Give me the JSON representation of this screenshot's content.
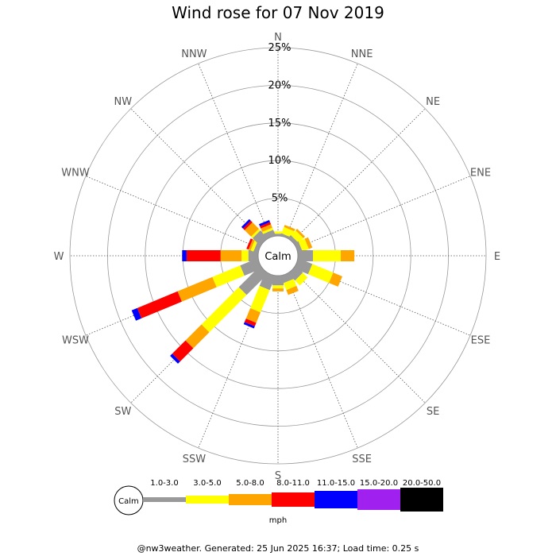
{
  "title": "Wind rose for 07 Nov 2019",
  "footer": "@nw3weather. Generated: 25 Jun 2025 16:37; Load time: 0.25 s",
  "chart_data": {
    "type": "windrose",
    "title": "Wind rose for 07 Nov 2019",
    "calm_label": "Calm",
    "unit": "mph",
    "directions": [
      "N",
      "NNE",
      "NE",
      "ENE",
      "E",
      "ESE",
      "SE",
      "SSE",
      "S",
      "SSW",
      "SW",
      "WSW",
      "W",
      "WNW",
      "NW",
      "NNW"
    ],
    "radial_ticks": [
      "5%",
      "10%",
      "15%",
      "20%",
      "25%"
    ],
    "radial_values": [
      5,
      10,
      15,
      20,
      25
    ],
    "rmax": 25,
    "bins": [
      {
        "name": "1.0-3.0",
        "color": "#999999"
      },
      {
        "name": "3.0-5.0",
        "color": "#ffff00"
      },
      {
        "name": "5.0-8.0",
        "color": "#ffa500"
      },
      {
        "name": "8.0-11.0",
        "color": "#ff0000"
      },
      {
        "name": "11.0-15.0",
        "color": "#0000ff"
      },
      {
        "name": "15.0-20.0",
        "color": "#a020f0"
      },
      {
        "name": "20.0-50.0",
        "color": "#000000"
      }
    ],
    "series": [
      {
        "direction": "N",
        "values": [
          0.3,
          0.3,
          0,
          0,
          0,
          0,
          0
        ]
      },
      {
        "direction": "NNE",
        "values": [
          0.3,
          0.9,
          0.3,
          0,
          0,
          0,
          0
        ]
      },
      {
        "direction": "NE",
        "values": [
          0.5,
          0.9,
          0.3,
          0,
          0,
          0,
          0
        ]
      },
      {
        "direction": "ENE",
        "values": [
          0.6,
          0.9,
          0.5,
          0,
          0,
          0,
          0
        ]
      },
      {
        "direction": "E",
        "values": [
          2.0,
          3.7,
          1.8,
          0,
          0,
          0,
          0
        ]
      },
      {
        "direction": "ESE",
        "values": [
          2.0,
          3.0,
          1.3,
          0,
          0,
          0,
          0
        ]
      },
      {
        "direction": "SE",
        "values": [
          1.3,
          0.9,
          0,
          0,
          0,
          0,
          0
        ]
      },
      {
        "direction": "SSE",
        "values": [
          1.0,
          1.0,
          0.7,
          0,
          0,
          0,
          0
        ]
      },
      {
        "direction": "S",
        "values": [
          1.3,
          0.4,
          0.4,
          0,
          0,
          0,
          0
        ]
      },
      {
        "direction": "SSW",
        "values": [
          2.0,
          3.2,
          1.5,
          0.5,
          0.3,
          0,
          0
        ]
      },
      {
        "direction": "SW",
        "values": [
          4.0,
          7.0,
          3.0,
          2.5,
          0.4,
          0,
          0
        ]
      },
      {
        "direction": "WSW",
        "values": [
          2.5,
          4.0,
          5.0,
          5.8,
          0.8,
          0,
          0
        ]
      },
      {
        "direction": "W",
        "values": [
          1.3,
          0.9,
          2.8,
          4.5,
          0.6,
          0,
          0
        ]
      },
      {
        "direction": "WNW",
        "values": [
          0.6,
          0.4,
          0.3,
          0.3,
          0,
          0,
          0
        ]
      },
      {
        "direction": "NW",
        "values": [
          1.4,
          0.3,
          1.2,
          0.3,
          0.3,
          0,
          0
        ]
      },
      {
        "direction": "NNW",
        "values": [
          0.8,
          0.3,
          0.5,
          0.3,
          0.3,
          0,
          0
        ]
      }
    ]
  }
}
